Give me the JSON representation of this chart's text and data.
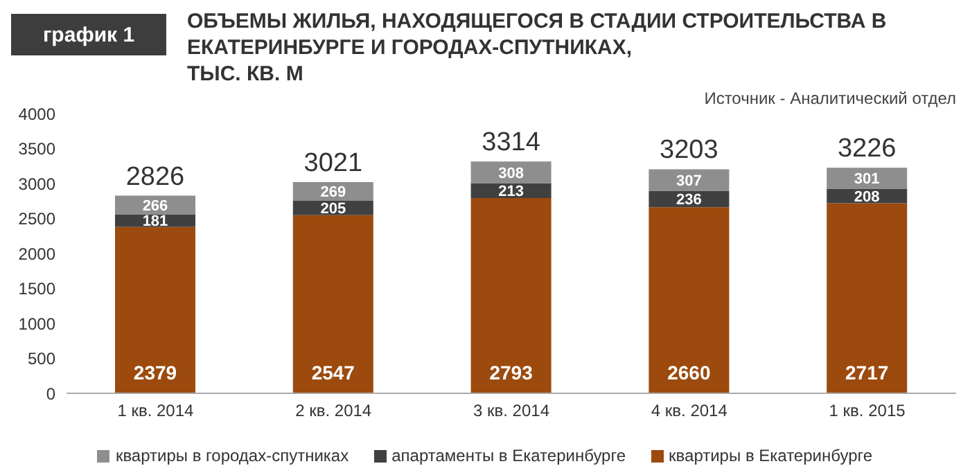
{
  "chart_data": {
    "type": "bar",
    "stacked": true,
    "title": "ОБЪЕМЫ ЖИЛЬЯ, НАХОДЯЩЕГОСЯ В СТАДИИ СТРОИТЕЛЬСТВА В\nЕКАТЕРИНБУРГЕ И ГОРОДАХ-СПУТНИКАХ,\nТЫС. КВ. М",
    "annotations": [
      "график 1",
      "Источник - Аналитический отдел"
    ],
    "categories": [
      "1 кв. 2014",
      "2 кв. 2014",
      "3 кв. 2014",
      "4 кв. 2014",
      "1 кв. 2015"
    ],
    "series": [
      {
        "name": "квартиры в Екатеринбурге",
        "color": "#9c4a0e",
        "values": [
          2379,
          2547,
          2793,
          2660,
          2717
        ]
      },
      {
        "name": "апартаменты в Екатеринбурге",
        "color": "#404040",
        "values": [
          181,
          205,
          213,
          236,
          208
        ]
      },
      {
        "name": "квартиры в городах-спутниках",
        "color": "#8e8e8e",
        "values": [
          266,
          269,
          308,
          307,
          301
        ]
      }
    ],
    "totals": [
      "2826",
      "3021",
      "3314",
      "3203",
      "3226"
    ],
    "ylim": [
      0,
      4000
    ],
    "yticks": [
      0,
      500,
      1000,
      1500,
      2000,
      2500,
      3000,
      3500,
      4000
    ],
    "data_labels": true,
    "legend": "bottom",
    "grid": false
  }
}
